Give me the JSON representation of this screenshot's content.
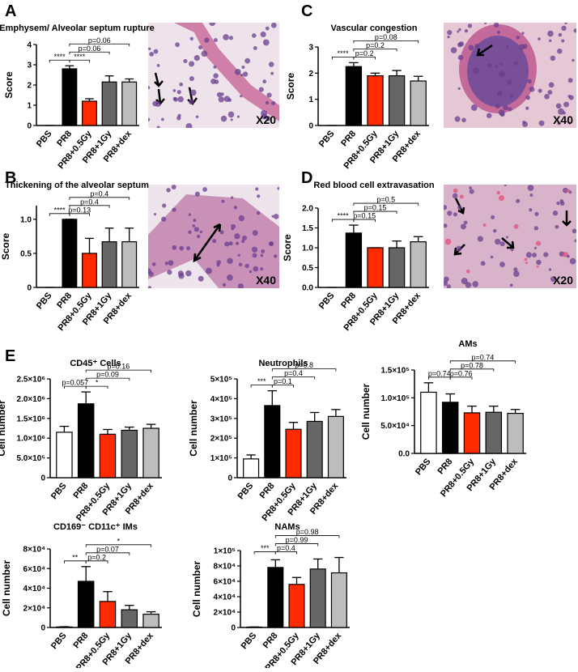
{
  "panel_labels": [
    "A",
    "C",
    "B",
    "D",
    "E"
  ],
  "image_labels": [
    "X20",
    "X40",
    "X40",
    "X20"
  ],
  "chart_data": [
    {
      "type": "bar",
      "title": "Emphysem/ Alveolar septum rupture",
      "ylabel": "Score",
      "categories": [
        "PBS",
        "PR8",
        "PR8+0.5Gy",
        "PR8+1Gy",
        "PR8+dex"
      ],
      "values": [
        0,
        2.8,
        1.2,
        2.15,
        2.15
      ],
      "errors": [
        0,
        0.15,
        0.12,
        0.3,
        0.15
      ],
      "colors": [
        "#ffffff",
        "#000000",
        "#ff2a00",
        "#666666",
        "#bdbdbd"
      ],
      "ylim": [
        0,
        4
      ],
      "yticks": [
        0,
        1,
        2,
        3,
        4
      ],
      "annotations": [
        "****",
        "****",
        "p=0.06",
        "p=0.06"
      ]
    },
    {
      "type": "bar",
      "title": "Vascular congestion",
      "ylabel": "Score",
      "categories": [
        "PBS",
        "PR8",
        "PR8+0.5Gy",
        "PR8+1Gy",
        "PR8+dex"
      ],
      "values": [
        0,
        2.25,
        1.9,
        1.9,
        1.7
      ],
      "errors": [
        0,
        0.15,
        0.1,
        0.2,
        0.18
      ],
      "colors": [
        "#ffffff",
        "#000000",
        "#ff2a00",
        "#666666",
        "#bdbdbd"
      ],
      "ylim": [
        0,
        3
      ],
      "yticks": [
        0,
        1,
        2,
        3
      ],
      "annotations": [
        "****",
        "p=0.2",
        "p=0.2",
        "p=0.08"
      ]
    },
    {
      "type": "bar",
      "title": "Thickening of the alveolar septum",
      "ylabel": "Score",
      "categories": [
        "PBS",
        "PR8",
        "PR8+0.5Gy",
        "PR8+1Gy",
        "PR8+dex"
      ],
      "values": [
        0,
        1,
        0.5,
        0.67,
        0.67
      ],
      "errors": [
        0,
        0,
        0.22,
        0.2,
        0.2
      ],
      "colors": [
        "#ffffff",
        "#000000",
        "#ff2a00",
        "#666666",
        "#bdbdbd"
      ],
      "ylim": [
        0,
        1.2
      ],
      "yticks": [
        0,
        0.5,
        {
          "value": 1,
          "label": "1.0"
        }
      ],
      "annotations": [
        "****",
        "p=0.13",
        "p=0.4",
        "p=0.4"
      ]
    },
    {
      "type": "bar",
      "title": "Red blood cell extravasation",
      "ylabel": "Score",
      "categories": [
        "PBS",
        "PR8",
        "PR8+0.5Gy",
        "PR8+1Gy",
        "PR8+dex"
      ],
      "values": [
        0,
        1.37,
        1,
        1,
        1.15
      ],
      "errors": [
        0,
        0.2,
        0,
        0.17,
        0.13
      ],
      "colors": [
        "#ffffff",
        "#000000",
        "#ff2a00",
        "#666666",
        "#bdbdbd"
      ],
      "ylim": [
        0,
        2
      ],
      "yticks": [
        {
          "value": 0,
          "label": "0.0"
        },
        0.5,
        {
          "value": 1,
          "label": "1.0"
        },
        1.5,
        {
          "value": 2,
          "label": "2.0"
        }
      ],
      "annotations": [
        "****",
        "p=0.15",
        "p=0.15",
        "p=0.5"
      ]
    },
    {
      "type": "bar",
      "title": "CD45⁺ Cells",
      "ylabel": "Cell number",
      "categories": [
        "PBS",
        "PR8",
        "PR8+0.5Gy",
        "PR8+1Gy",
        "PR8+dex"
      ],
      "values": [
        1150000,
        1870000,
        1100000,
        1200000,
        1250000
      ],
      "errors": [
        150000,
        300000,
        120000,
        80000,
        100000
      ],
      "colors": [
        "#ffffff",
        "#000000",
        "#ff2a00",
        "#666666",
        "#bdbdbd"
      ],
      "ylim": [
        0,
        2500000
      ],
      "yticks": [
        0,
        {
          "value": 500000,
          "label": "5.0×10⁵"
        },
        {
          "value": 1000000,
          "label": "1.0×10⁶"
        },
        {
          "value": 1500000,
          "label": "1.5×10⁶"
        },
        {
          "value": 2000000,
          "label": "2.0×10⁶"
        },
        {
          "value": 2500000,
          "label": "2.5×10⁶"
        }
      ],
      "annotations": [
        "p=0.057",
        "*",
        "p=0.09",
        "p=0.16"
      ]
    },
    {
      "type": "bar",
      "title": "Neutrophils",
      "ylabel": "Cell number",
      "categories": [
        "PBS",
        "PR8",
        "PR8+0.5Gy",
        "PR8+1Gy",
        "PR8+dex"
      ],
      "values": [
        95000,
        365000,
        245000,
        285000,
        310000
      ],
      "errors": [
        20000,
        75000,
        35000,
        45000,
        35000
      ],
      "colors": [
        "#ffffff",
        "#000000",
        "#ff2a00",
        "#666666",
        "#bdbdbd"
      ],
      "ylim": [
        0,
        500000
      ],
      "yticks": [
        0,
        {
          "value": 100000,
          "label": "1×10⁵"
        },
        {
          "value": 200000,
          "label": "2×10⁵"
        },
        {
          "value": 300000,
          "label": "3×10⁵"
        },
        {
          "value": 400000,
          "label": "4×10⁵"
        },
        {
          "value": 500000,
          "label": "5×10⁵"
        }
      ],
      "annotations": [
        "***",
        "p=0.1",
        "p=0.4",
        "p=0.8"
      ]
    },
    {
      "type": "bar",
      "title": "AMs",
      "ylabel": "Cell number",
      "categories": [
        "PBS",
        "PR8",
        "PR8+0.5Gy",
        "PR8+1Gy",
        "PR8+dex"
      ],
      "values": [
        110000,
        92000,
        73000,
        74000,
        72000
      ],
      "errors": [
        17000,
        15000,
        12000,
        11000,
        7000
      ],
      "colors": [
        "#ffffff",
        "#000000",
        "#ff2a00",
        "#666666",
        "#bdbdbd"
      ],
      "ylim": [
        0,
        150000
      ],
      "yticks": [
        {
          "value": 0,
          "label": "0.0"
        },
        {
          "value": 50000,
          "label": "5.0×10⁴"
        },
        {
          "value": 100000,
          "label": "1.0×10⁵"
        },
        {
          "value": 150000,
          "label": "1.5×10⁵"
        }
      ],
      "annotations": [
        "p=0.74",
        "p=0.76",
        "p=0.78",
        "p=0.74"
      ]
    },
    {
      "type": "bar",
      "title": "CD169⁻ CD11c⁺ IMs",
      "ylabel": "Cell number",
      "categories": [
        "PBS",
        "PR8",
        "PR8+0.5Gy",
        "PR8+1Gy",
        "PR8+dex"
      ],
      "values": [
        500,
        47000,
        26500,
        18000,
        13500
      ],
      "errors": [
        300,
        15000,
        10000,
        4500,
        2500
      ],
      "colors": [
        "#ffffff",
        "#000000",
        "#ff2a00",
        "#666666",
        "#bdbdbd"
      ],
      "ylim": [
        0,
        80000
      ],
      "yticks": [
        0,
        {
          "value": 20000,
          "label": "2×10⁴"
        },
        {
          "value": 40000,
          "label": "4×10⁴"
        },
        {
          "value": 60000,
          "label": "6×10⁴"
        },
        {
          "value": 80000,
          "label": "8×10⁴"
        }
      ],
      "annotations": [
        "**",
        "p=0.2",
        "p=0.07",
        "*"
      ]
    },
    {
      "type": "bar",
      "title": "NAMs",
      "ylabel": "Cell number",
      "categories": [
        "PBS",
        "PR8",
        "PR8+0.5Gy",
        "PR8+1Gy",
        "PR8+dex"
      ],
      "values": [
        500,
        78000,
        56000,
        76000,
        71000
      ],
      "errors": [
        200,
        10000,
        9000,
        13000,
        20000
      ],
      "colors": [
        "#ffffff",
        "#000000",
        "#ff2a00",
        "#666666",
        "#bdbdbd"
      ],
      "ylim": [
        0,
        100000
      ],
      "yticks": [
        0,
        {
          "value": 20000,
          "label": "2×10⁴"
        },
        {
          "value": 40000,
          "label": "4×10⁴"
        },
        {
          "value": 60000,
          "label": "6×10⁴"
        },
        {
          "value": 80000,
          "label": "8×10⁴"
        },
        {
          "value": 100000,
          "label": "1×10⁵"
        }
      ],
      "annotations": [
        "***",
        "p=0.4",
        "p=0.99",
        "p=0.98"
      ]
    }
  ]
}
